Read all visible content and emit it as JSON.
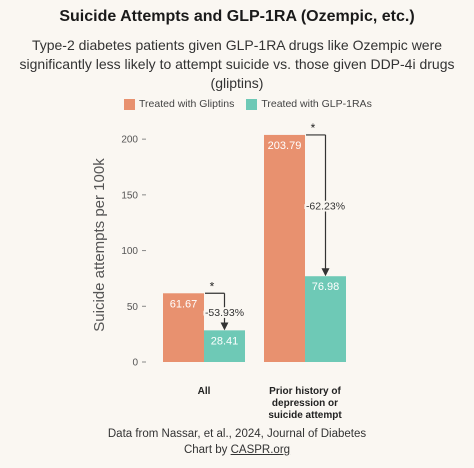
{
  "colors": {
    "background": "#faf7f2",
    "gliptins": "#e8916f",
    "glp1": "#6ec9b6"
  },
  "chart_data": {
    "type": "bar",
    "title": "Suicide Attempts and GLP-1RA (Ozempic, etc.)",
    "subtitle": "Type-2 diabetes patients given GLP-1RA drugs like Ozempic were significantly less likely to attempt suicide vs. those given DDP-4i drugs (gliptins)",
    "ylabel": "Suicide attempts per 100k",
    "xlabel": "",
    "ylim": [
      0,
      210
    ],
    "yticks": [
      0,
      50,
      100,
      150,
      200
    ],
    "grid": false,
    "legend_position": "top",
    "categories": [
      "All",
      "Prior history of depression or suicide attempt"
    ],
    "category_label_lines": [
      [
        "All"
      ],
      [
        "Prior history of",
        "depression or",
        "suicide attempt"
      ]
    ],
    "series": [
      {
        "name": "Treated with Gliptins",
        "values": [
          61.67,
          203.79
        ],
        "labels": [
          "61.67",
          "203.79"
        ]
      },
      {
        "name": "Treated with GLP-1RAs",
        "values": [
          28.41,
          76.98
        ],
        "labels": [
          "28.41",
          "76.98"
        ]
      }
    ],
    "annotations": [
      {
        "category": 0,
        "change": "-53.93%",
        "marker": "*"
      },
      {
        "category": 1,
        "change": "-62.23%",
        "marker": "*"
      }
    ]
  },
  "footer": {
    "line1": "Data from Nassar, et al., 2024, Journal of Diabetes",
    "line2_prefix": "Chart by ",
    "line2_link": "CASPR.org"
  }
}
